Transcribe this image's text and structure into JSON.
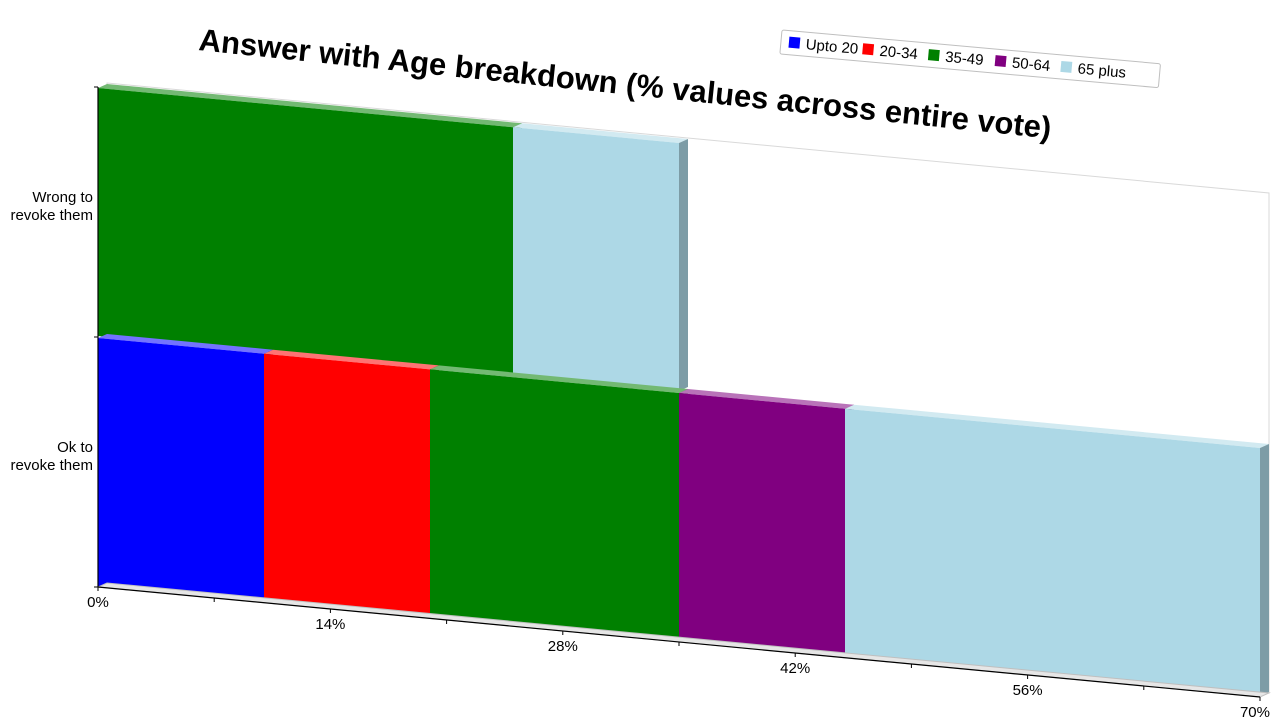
{
  "chart_data": {
    "type": "bar",
    "orientation": "horizontal",
    "stacked": true,
    "title": "Answer with Age breakdown (% values across entire vote)",
    "categories": [
      "Wrong to revoke them",
      "Ok to revoke them"
    ],
    "category_label_lines": [
      [
        "Wrong to",
        "revoke them"
      ],
      [
        "Ok to",
        "revoke them"
      ]
    ],
    "series": [
      {
        "name": "Upto 20",
        "color": "#0000ff",
        "values": [
          0,
          10
        ]
      },
      {
        "name": "20-34",
        "color": "#ff0000",
        "values": [
          0,
          10
        ]
      },
      {
        "name": "35-49",
        "color": "#008000",
        "values": [
          25,
          15
        ]
      },
      {
        "name": "50-64",
        "color": "#800080",
        "values": [
          0,
          10
        ]
      },
      {
        "name": "65 plus",
        "color": "#add8e6",
        "values": [
          10,
          25
        ]
      }
    ],
    "xlim": [
      0,
      70
    ],
    "xticks": [
      "0%",
      "14%",
      "28%",
      "42%",
      "56%",
      "70%"
    ],
    "legend_position": "top-right",
    "grid": false
  }
}
